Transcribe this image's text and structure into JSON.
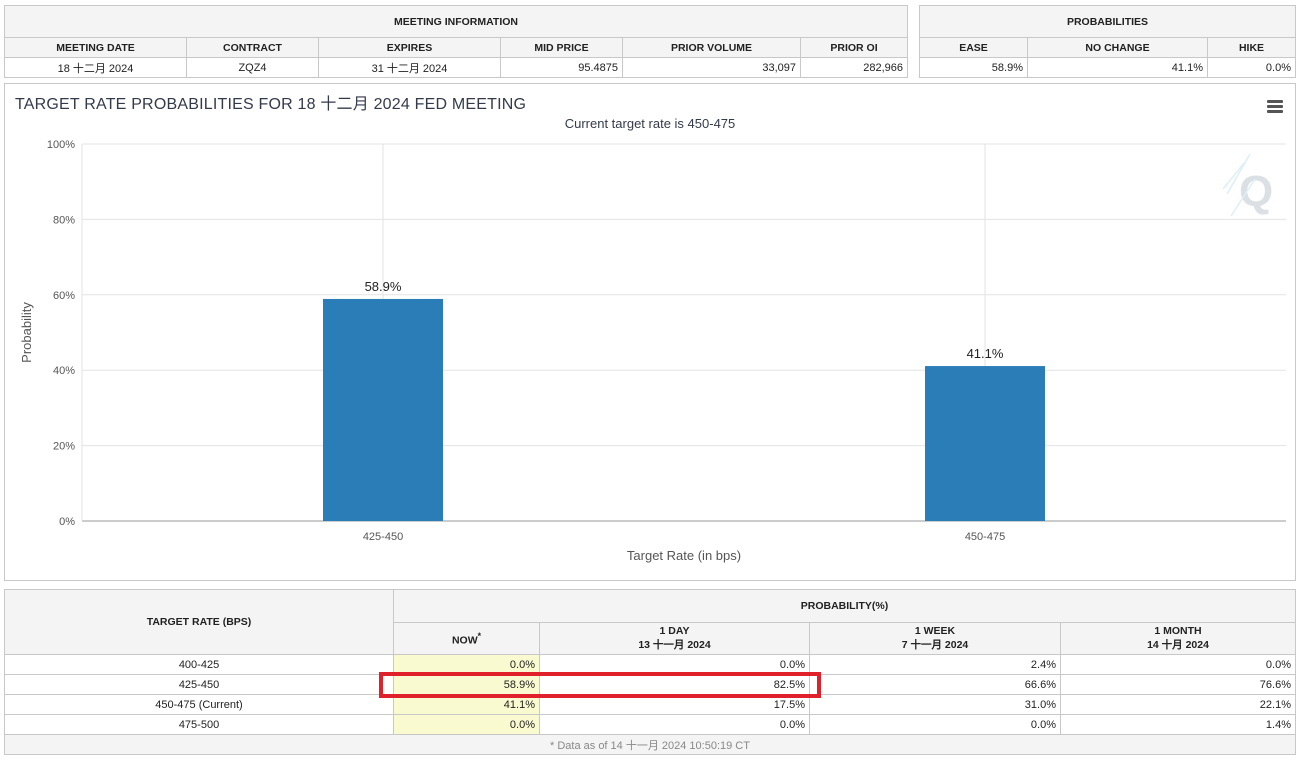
{
  "meeting_info": {
    "title": "MEETING INFORMATION",
    "columns": [
      "MEETING DATE",
      "CONTRACT",
      "EXPIRES",
      "MID PRICE",
      "PRIOR VOLUME",
      "PRIOR OI"
    ],
    "values": [
      "18 十二月 2024",
      "ZQZ4",
      "31 十二月 2024",
      "95.4875",
      "33,097",
      "282,966"
    ]
  },
  "probabilities": {
    "title": "PROBABILITIES",
    "columns": [
      "EASE",
      "NO CHANGE",
      "HIKE"
    ],
    "values": [
      "58.9%",
      "41.1%",
      "0.0%"
    ]
  },
  "chart_panel": {
    "title": "TARGET RATE PROBABILITIES FOR 18 十二月 2024 FED MEETING",
    "menu_icon": "hamburger-menu-icon",
    "watermark_icon": "q-logo-icon"
  },
  "chart_data": {
    "type": "bar",
    "title": "TARGET RATE PROBABILITIES FOR 18 十二月 2024 FED MEETING",
    "subtitle": "Current target rate is 450-475",
    "categories": [
      "425-450",
      "450-475"
    ],
    "values": [
      58.9,
      41.1
    ],
    "data_labels": [
      "58.9%",
      "41.1%"
    ],
    "xlabel": "Target Rate (in bps)",
    "ylabel": "Probability",
    "ylim": [
      0,
      100
    ],
    "yticks": [
      "0%",
      "20%",
      "40%",
      "60%",
      "80%",
      "100%"
    ],
    "bar_color": "#2b7db8",
    "grid": true,
    "legend": false
  },
  "prob_table": {
    "rate_header": "TARGET RATE (BPS)",
    "prob_header": "PROBABILITY(%)",
    "columns": [
      {
        "line1": "NOW",
        "sup": "*",
        "line2": ""
      },
      {
        "line1": "1 DAY",
        "sup": "",
        "line2": "13 十一月 2024"
      },
      {
        "line1": "1 WEEK",
        "sup": "",
        "line2": "7 十一月 2024"
      },
      {
        "line1": "1 MONTH",
        "sup": "",
        "line2": "14 十月 2024"
      }
    ],
    "rows": [
      {
        "rate": "400-425",
        "values": [
          "0.0%",
          "0.0%",
          "2.4%",
          "0.0%"
        ]
      },
      {
        "rate": "425-450",
        "values": [
          "58.9%",
          "82.5%",
          "66.6%",
          "76.6%"
        ]
      },
      {
        "rate": "450-475 (Current)",
        "values": [
          "41.1%",
          "17.5%",
          "31.0%",
          "22.1%"
        ]
      },
      {
        "rate": "475-500",
        "values": [
          "0.0%",
          "0.0%",
          "0.0%",
          "1.4%"
        ]
      }
    ],
    "footnote": "* Data as of 14 十一月 2024 10:50:19 CT",
    "now_color": "#fafad0",
    "highlight_color": "#e0202a"
  }
}
